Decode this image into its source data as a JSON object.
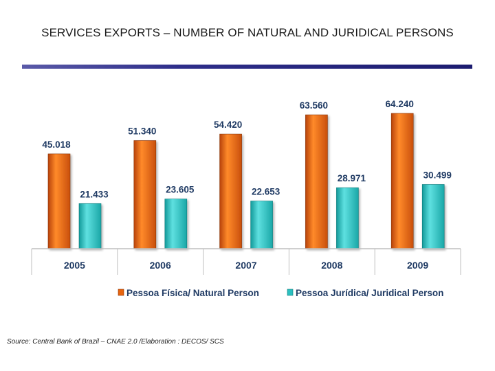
{
  "title": "SERVICES EXPORTS – NUMBER OF NATURAL AND JURIDICAL PERSONS",
  "source": "Source: Central Bank of Brazil – CNAE 2.0 /Elaboration : DECOS/ SCS",
  "chart_data": {
    "type": "bar",
    "categories": [
      "2005",
      "2006",
      "2007",
      "2008",
      "2009"
    ],
    "series": [
      {
        "name": "Pessoa Física/ Natural Person",
        "values": [
          45018,
          51340,
          54420,
          63560,
          64240
        ],
        "labels": [
          "45.018",
          "51.340",
          "54.420",
          "63.560",
          "64.240"
        ],
        "color": "#e8650f"
      },
      {
        "name": "Pessoa Jurídica/ Juridical Person",
        "values": [
          21433,
          23605,
          22653,
          28971,
          30499
        ],
        "labels": [
          "21.433",
          "23.605",
          "22.653",
          "28.971",
          "30.499"
        ],
        "color": "#2bc0c0"
      }
    ],
    "ylim": [
      0,
      75000
    ],
    "grid": false,
    "legend": "bottom"
  }
}
